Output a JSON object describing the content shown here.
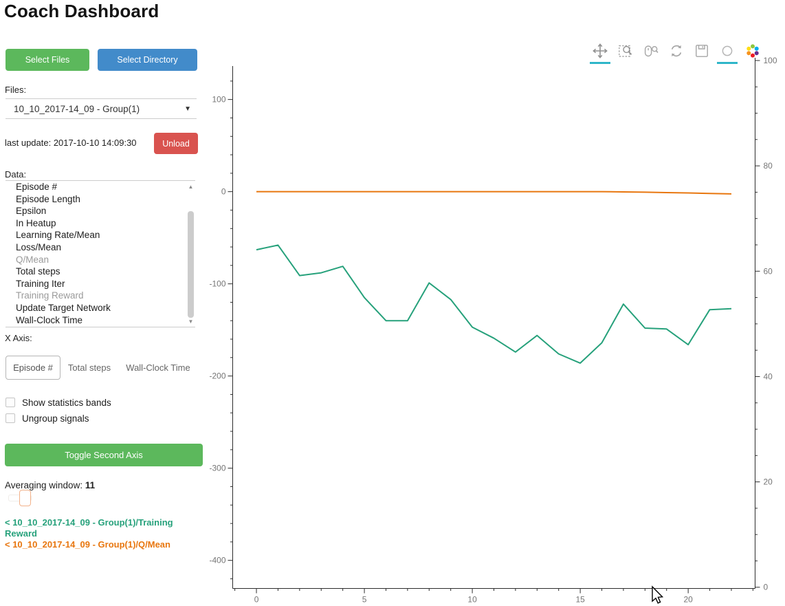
{
  "title": "Coach Dashboard",
  "buttons": {
    "select_files": "Select Files",
    "select_directory": "Select Directory",
    "unload": "Unload",
    "toggle_second_axis": "Toggle Second Axis"
  },
  "files": {
    "label": "Files:",
    "selected": "10_10_2017-14_09 - Group(1)"
  },
  "last_update": "last update: 2017-10-10 14:09:30",
  "data_panel": {
    "label": "Data:",
    "items": [
      {
        "label": "Episode #",
        "dimmed": false
      },
      {
        "label": "Episode Length",
        "dimmed": false
      },
      {
        "label": "Epsilon",
        "dimmed": false
      },
      {
        "label": "In Heatup",
        "dimmed": false
      },
      {
        "label": "Learning Rate/Mean",
        "dimmed": false
      },
      {
        "label": "Loss/Mean",
        "dimmed": false
      },
      {
        "label": "Q/Mean",
        "dimmed": true
      },
      {
        "label": "Total steps",
        "dimmed": false
      },
      {
        "label": "Training Iter",
        "dimmed": false
      },
      {
        "label": "Training Reward",
        "dimmed": true
      },
      {
        "label": "Update Target Network",
        "dimmed": false
      },
      {
        "label": "Wall-Clock Time",
        "dimmed": false
      }
    ]
  },
  "x_axis_selector": {
    "label": "X Axis:",
    "options": [
      {
        "label": "Episode #",
        "selected": true
      },
      {
        "label": "Total steps",
        "selected": false
      },
      {
        "label": "Wall-Clock Time",
        "selected": false
      }
    ]
  },
  "checkboxes": [
    {
      "label": "Show statistics bands",
      "checked": false
    },
    {
      "label": "Ungroup signals",
      "checked": false
    }
  ],
  "averaging": {
    "label": "Averaging window:",
    "value": "11"
  },
  "legend": [
    {
      "label": "< 10_10_2017-14_09 - Group(1)/Training Reward",
      "color": "#26a17b"
    },
    {
      "label": "< 10_10_2017-14_09 - Group(1)/Q/Mean",
      "color": "#e8760e"
    }
  ],
  "toolbar": {
    "tools": [
      {
        "name": "pan",
        "active": true
      },
      {
        "name": "box-zoom",
        "active": false
      },
      {
        "name": "wheel-zoom",
        "active": false
      },
      {
        "name": "reset",
        "active": false
      },
      {
        "name": "save",
        "active": false
      },
      {
        "name": "hover",
        "active": true
      }
    ],
    "active_color": "#2fb6c9"
  },
  "chart_data": {
    "type": "line",
    "title": "",
    "xlabel": "Episode #",
    "grid": false,
    "legend_position": "left-panel",
    "x": [
      0,
      1,
      2,
      3,
      4,
      5,
      6,
      7,
      8,
      9,
      10,
      11,
      12,
      13,
      14,
      15,
      16,
      17,
      18,
      19,
      20,
      21,
      22
    ],
    "series": [
      {
        "name": "10_10_2017-14_09 - Group(1)/Training Reward",
        "color": "#26a17b",
        "values": [
          -63,
          -58,
          -91,
          -88,
          -81,
          -115,
          -140,
          -140,
          -99,
          -117,
          -147,
          -159,
          -174,
          -156,
          -176,
          -186,
          -164,
          -122,
          -148,
          -149,
          -166,
          -128,
          -127
        ]
      },
      {
        "name": "10_10_2017-14_09 - Group(1)/Q/Mean",
        "color": "#e8760e",
        "values": [
          0,
          0,
          0,
          0,
          0,
          0,
          0,
          0,
          0,
          0,
          0,
          0,
          0,
          0,
          0,
          0,
          0,
          -0.3,
          -0.6,
          -1,
          -1.4,
          -1.9,
          -2.4
        ]
      }
    ],
    "left_axis": {
      "ticks": [
        100,
        0,
        -100,
        -200,
        -300,
        -400
      ],
      "range": [
        -430.5,
        136.3
      ],
      "minor_step": 20
    },
    "right_axis": {
      "ticks": [
        100,
        80,
        60,
        40,
        20,
        0
      ],
      "range": [
        0,
        100
      ],
      "minor_step": 5
    },
    "x_axis": {
      "ticks": [
        0,
        5,
        10,
        15,
        20
      ],
      "range": [
        -1.1,
        23.1
      ],
      "minor_step": 1
    }
  }
}
